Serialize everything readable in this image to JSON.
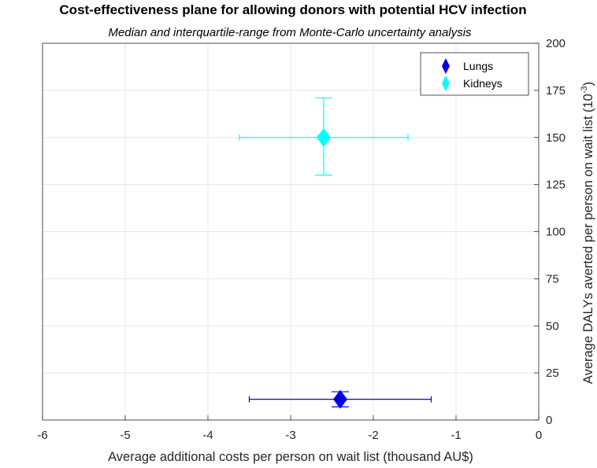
{
  "chart_data": {
    "type": "scatter",
    "title": "Cost-effectiveness plane for allowing donors with potential HCV infection",
    "subtitle": "Median and interquartile-range from Monte-Carlo uncertainty analysis",
    "xlabel": "Average additional costs per person on wait list (thousand AU$)",
    "ylabel_main": "Average DALYs averted per person on wait list (10",
    "ylabel_exp": "-3",
    "ylabel_close": ")",
    "xlim": [
      -6,
      0
    ],
    "ylim": [
      0,
      200
    ],
    "xticks": [
      -6,
      -5,
      -4,
      -3,
      -2,
      -1,
      0
    ],
    "yticks": [
      0,
      25,
      50,
      75,
      100,
      125,
      150,
      175,
      200
    ],
    "grid": true,
    "y_axis_location": "right",
    "legend_position": "top-right",
    "series": [
      {
        "name": "Lungs",
        "color": "#0000e6",
        "marker": "diamond",
        "x": -2.4,
        "y": 11,
        "x_iqr": [
          -3.5,
          -1.3
        ],
        "y_iqr": [
          7,
          15
        ]
      },
      {
        "name": "Kidneys",
        "color": "#00ffff",
        "marker": "diamond",
        "x": -2.6,
        "y": 150,
        "x_iqr": [
          -3.62,
          -1.58
        ],
        "y_iqr": [
          130,
          171
        ]
      }
    ]
  }
}
